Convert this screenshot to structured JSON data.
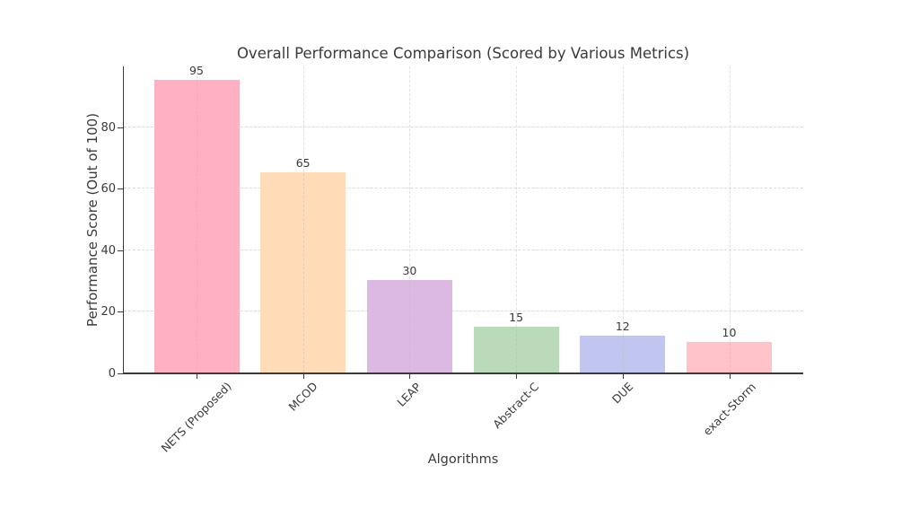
{
  "figure": {
    "background": "#ffffff"
  },
  "chart_data": {
    "type": "bar",
    "title": "Overall Performance Comparison (Scored by Various Metrics)",
    "xlabel": "Algorithms",
    "ylabel": "Performance Score (Out of 100)",
    "categories": [
      "NETS (Proposed)",
      "MCOD",
      "LEAP",
      "Abstract-C",
      "DUE",
      "exact-Storm"
    ],
    "values": [
      95,
      65,
      30,
      15,
      12,
      10
    ],
    "bar_colors": [
      "#ffb1c1",
      "#ffdbb8",
      "#dcb9e2",
      "#b9dbb9",
      "#c1c6f1",
      "#ffc2c6"
    ],
    "yticks": [
      0,
      20,
      40,
      60,
      80
    ],
    "ylim": [
      0,
      100
    ],
    "grid": true,
    "grid_style": "dashed",
    "legend_position": "none",
    "axis_color": "#3b3b3b",
    "grid_color": "#dbdbdb",
    "text_color": "#3a3a3a"
  }
}
